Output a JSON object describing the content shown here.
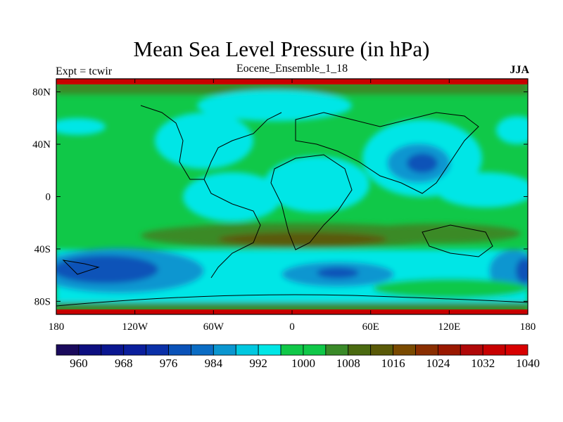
{
  "title": "Mean Sea Level Pressure (in hPa)",
  "left_string": "Expt = tcwir",
  "center_string": "Eocene_Ensemble_1_18",
  "right_string": "JJA",
  "lat_labels": [
    "80N",
    "40N",
    "0",
    "40S",
    "80S"
  ],
  "lat_values": [
    80,
    40,
    0,
    -40,
    -80
  ],
  "lon_labels": [
    "180",
    "120W",
    "60W",
    "0",
    "60E",
    "120E",
    "180"
  ],
  "lon_values": [
    -180,
    -120,
    -60,
    0,
    60,
    120,
    180
  ],
  "colorbar": {
    "labels": [
      "960",
      "968",
      "976",
      "984",
      "992",
      "1000",
      "1008",
      "1016",
      "1024",
      "1032",
      "1040"
    ],
    "colors": [
      "#1a0a5c",
      "#0d0f80",
      "#0a1690",
      "#0a1e9c",
      "#0a30a8",
      "#0a52b8",
      "#0a6cc4",
      "#0a96d0",
      "#00c8e0",
      "#00e6e6",
      "#10c848",
      "#10c848",
      "#3a8a28",
      "#4a6a10",
      "#5a5a08",
      "#7a4a00",
      "#8a2e00",
      "#9a1800",
      "#b00808",
      "#c80000",
      "#d80000"
    ]
  }
}
